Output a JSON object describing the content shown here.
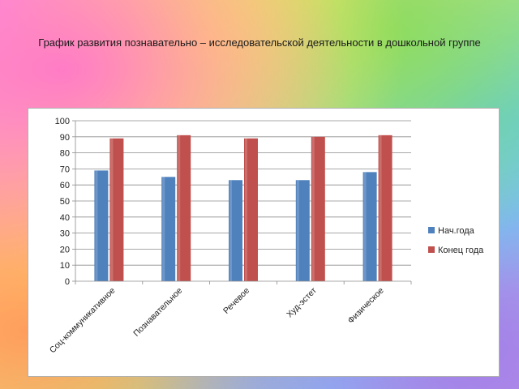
{
  "slide": {
    "title": "График развития познавательно – исследовательской деятельности в дошкольной группе"
  },
  "chart_data": {
    "type": "bar",
    "categories": [
      "Соц-коммуникативное",
      "Познавательное",
      "Речевое",
      "Худ-эстет",
      "Физическое"
    ],
    "series": [
      {
        "name": "Нач.года",
        "values": [
          69,
          65,
          63,
          63,
          68
        ],
        "color": "#4F81BD"
      },
      {
        "name": "Конец года",
        "values": [
          89,
          91,
          89,
          90,
          91
        ],
        "color": "#C0504D"
      }
    ],
    "title": "",
    "xlabel": "",
    "ylabel": "",
    "ylim": [
      0,
      100
    ],
    "yticks": [
      0,
      10,
      20,
      30,
      40,
      50,
      60,
      70,
      80,
      90,
      100
    ],
    "grid": true,
    "legend_position": "right"
  }
}
